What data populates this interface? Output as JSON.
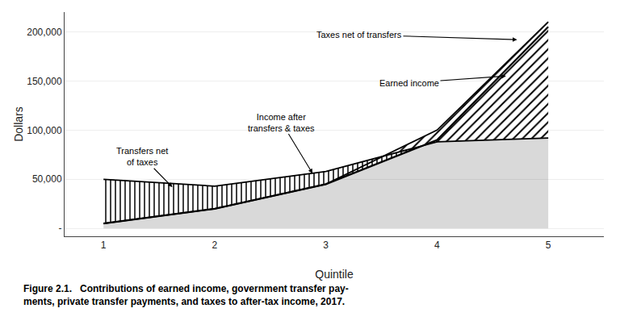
{
  "chart_data": {
    "type": "area",
    "title": "Figure 2.1.   Contributions of earned income, government transfer pay-\nments, private transfer payments, and taxes to after-tax income, 2017.",
    "x": [
      1,
      2,
      3,
      4,
      5
    ],
    "series": [
      {
        "color": "#000000",
        "values": [
          5000,
          20000,
          45000,
          90000,
          205000
        ]
      },
      {
        "color": "#000000",
        "values": [
          50000,
          43000,
          58000,
          88000,
          92000
        ]
      },
      {
        "color": "#000000",
        "values": [
          5000,
          20000,
          45000,
          100000,
          210000
        ]
      }
    ],
    "xlabel": "Quintile",
    "ylabel": "Dollars",
    "xlim": [
      0.65,
      5.5
    ],
    "ylim": [
      -8000,
      220000
    ],
    "xticks": [
      1,
      2,
      3,
      4,
      5
    ],
    "yticks": [
      {
        "value": 0,
        "label": "-"
      },
      {
        "value": 50000,
        "label": "50,000"
      },
      {
        "value": 100000,
        "label": "100,000"
      },
      {
        "value": 150000,
        "label": "150,000"
      },
      {
        "value": 200000,
        "label": "200,000"
      }
    ],
    "grid": "y",
    "annotations": [
      {
        "text": "Transfers net\nof taxes",
        "xy": [
          1.62,
          42000
        ],
        "xytext": [
          1.35,
          73000
        ]
      },
      {
        "text": "Income after\ntransfers & taxes",
        "xy": [
          2.88,
          56000
        ],
        "xytext": [
          2.6,
          108000
        ]
      },
      {
        "text": "Earned income",
        "xy": [
          4.62,
          155000
        ],
        "xytext": [
          3.75,
          148000
        ]
      },
      {
        "text": "Taxes net of transfers",
        "xy": [
          4.72,
          192000
        ],
        "xytext": [
          3.3,
          197000
        ]
      }
    ]
  }
}
